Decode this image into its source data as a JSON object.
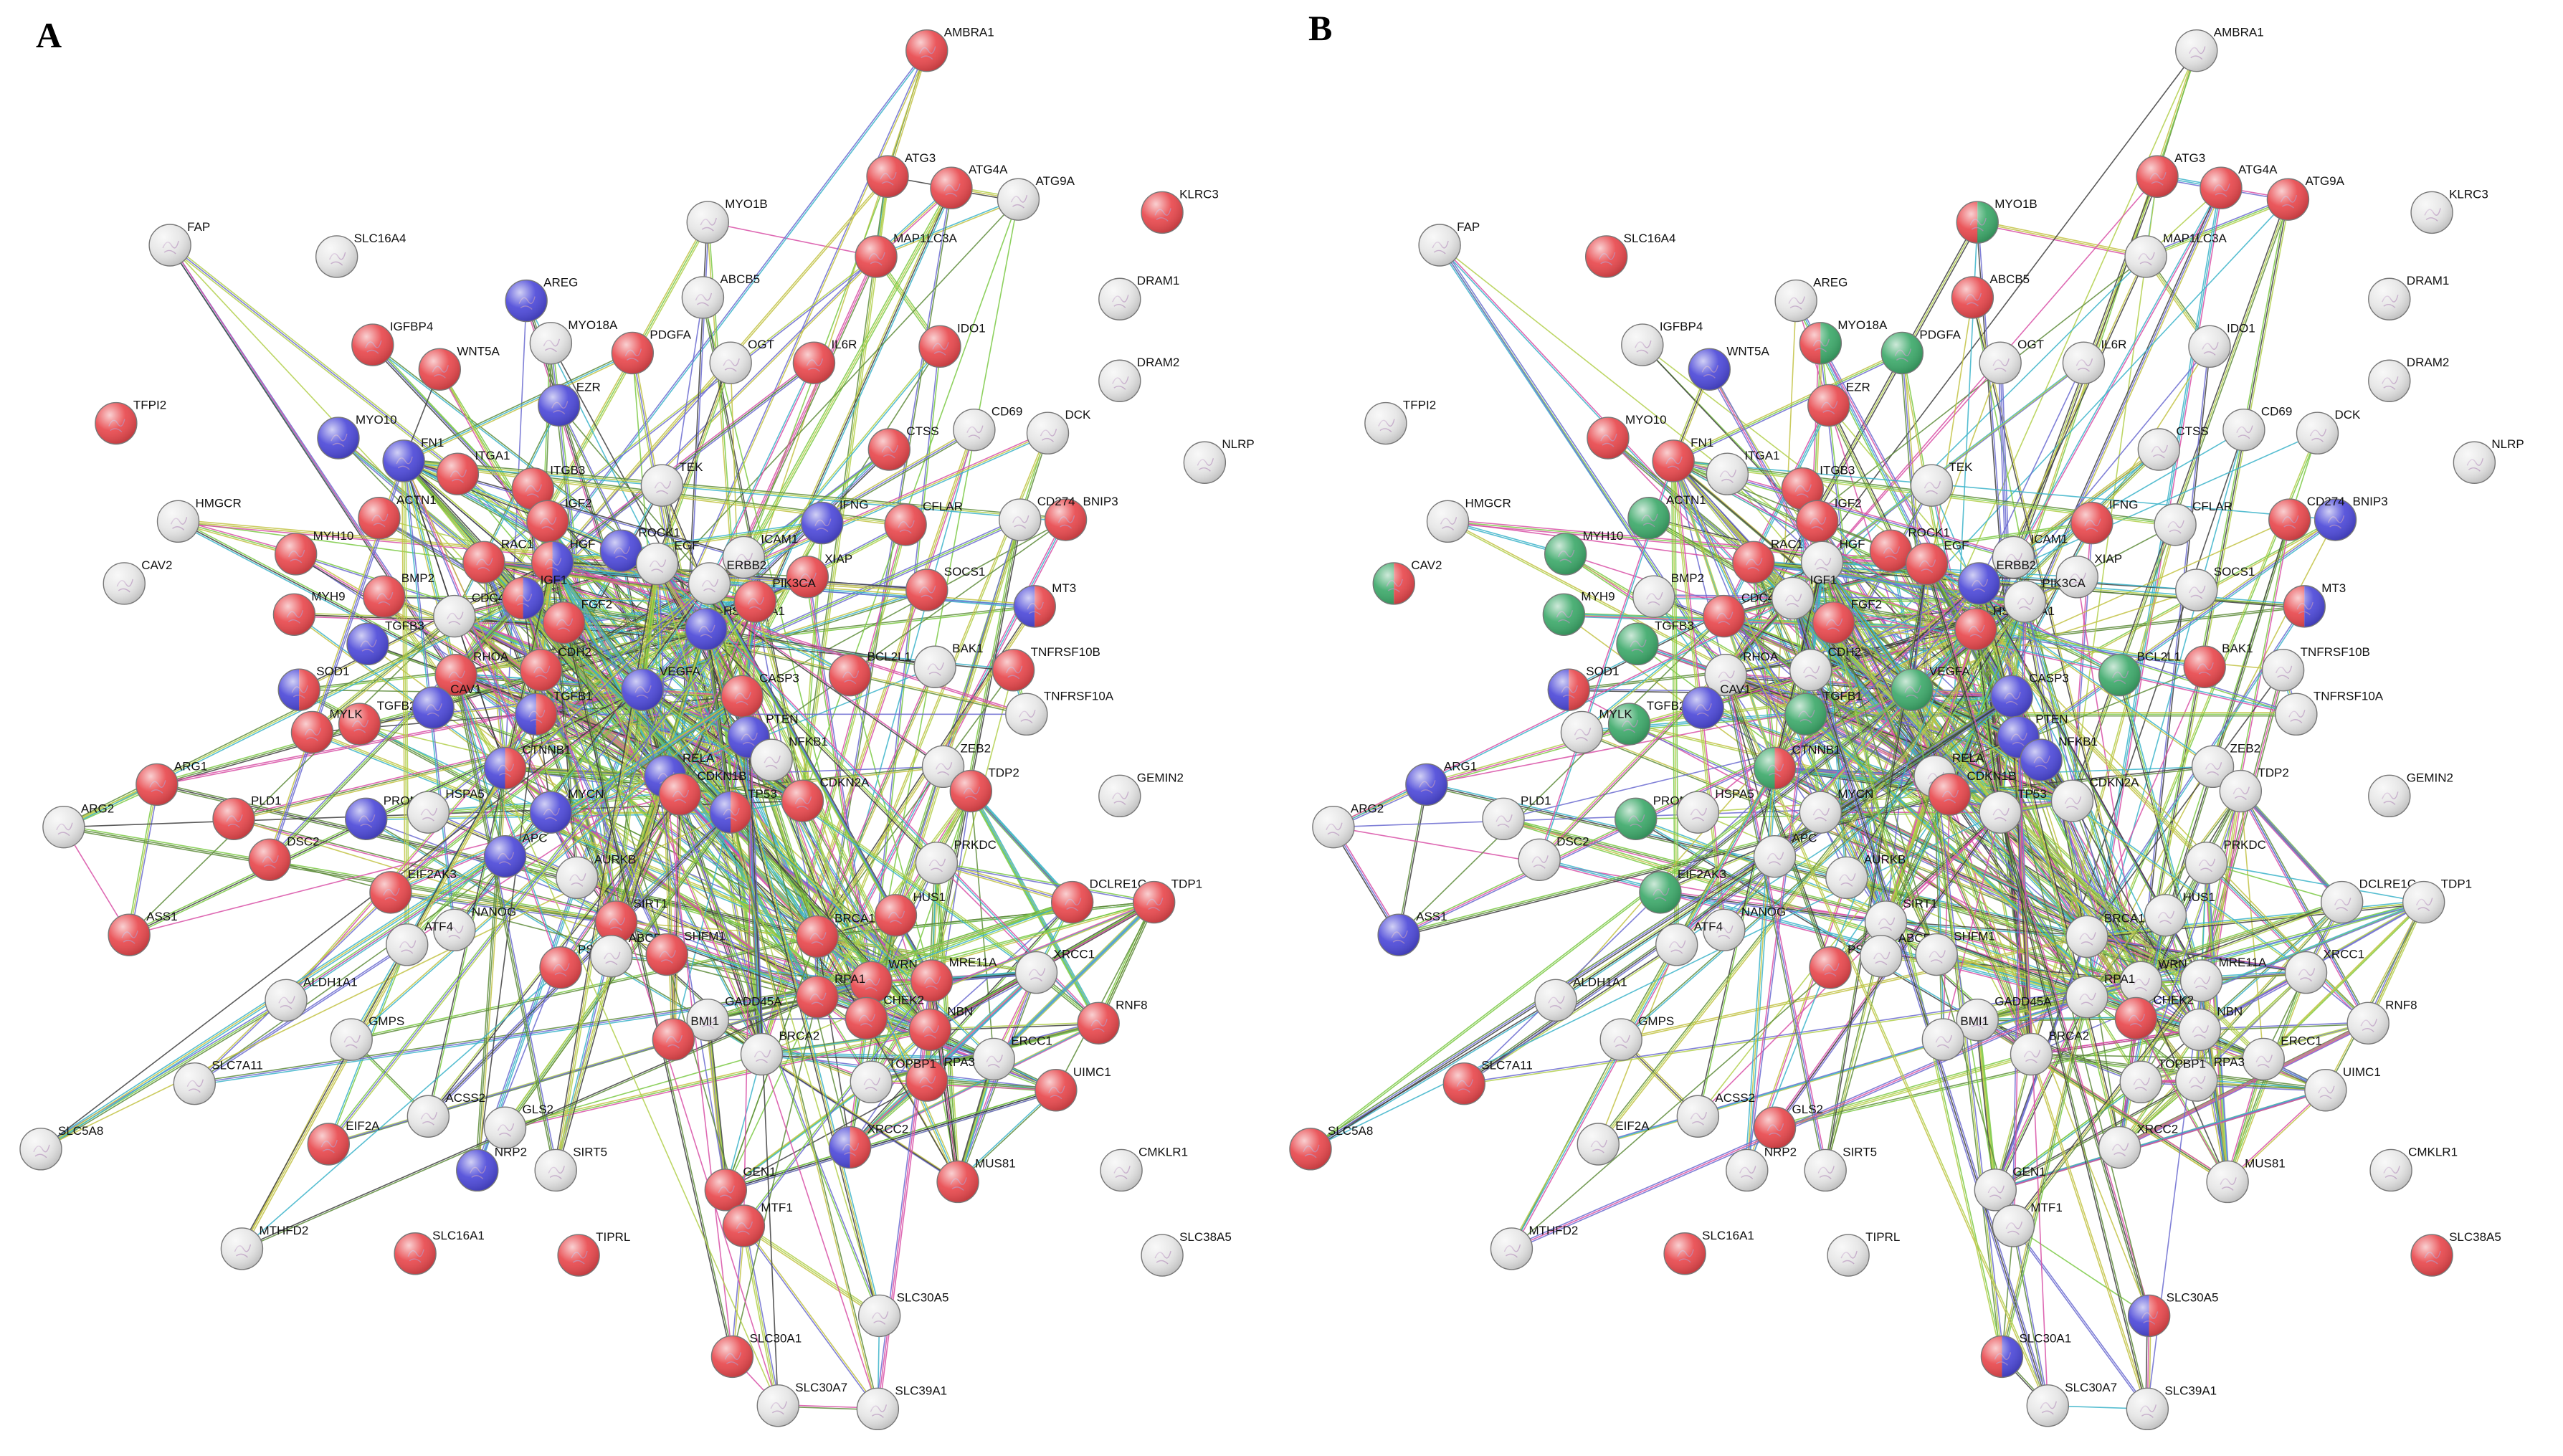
{
  "panels": [
    {
      "letter": "A"
    },
    {
      "letter": "B"
    }
  ],
  "colors": {
    "red": "#e8454a",
    "blue": "#4a46d8",
    "green": "#3aa868",
    "white": "#e6e6e6",
    "node_stroke": "#777777"
  },
  "nodes": [
    {
      "label": "AMBRA1",
      "a": [
        "red"
      ],
      "b": [
        "white"
      ]
    },
    {
      "label": "ATG3",
      "a": [
        "red"
      ],
      "b": [
        "red"
      ]
    },
    {
      "label": "ATG4A",
      "a": [
        "red"
      ],
      "b": [
        "red"
      ]
    },
    {
      "label": "ATG9A",
      "a": [
        "white"
      ],
      "b": [
        "red"
      ]
    },
    {
      "label": "KLRC3",
      "a": [
        "red"
      ],
      "b": [
        "white"
      ]
    },
    {
      "label": "MAP1LC3A",
      "a": [
        "red"
      ],
      "b": [
        "white"
      ]
    },
    {
      "label": "FAP",
      "a": [
        "white"
      ],
      "b": [
        "white"
      ]
    },
    {
      "label": "SLC16A4",
      "a": [
        "white"
      ],
      "b": [
        "red"
      ]
    },
    {
      "label": "MYO1B",
      "a": [
        "white"
      ],
      "b": [
        "red",
        "green"
      ]
    },
    {
      "label": "AREG",
      "a": [
        "blue"
      ],
      "b": [
        "white"
      ]
    },
    {
      "label": "ABCB5",
      "a": [
        "white"
      ],
      "b": [
        "red"
      ]
    },
    {
      "label": "DRAM1",
      "a": [
        "white"
      ],
      "b": [
        "white"
      ]
    },
    {
      "label": "IGFBP4",
      "a": [
        "red"
      ],
      "b": [
        "white"
      ]
    },
    {
      "label": "MYO18A",
      "a": [
        "white"
      ],
      "b": [
        "red",
        "green"
      ]
    },
    {
      "label": "PDGFA",
      "a": [
        "red"
      ],
      "b": [
        "green"
      ]
    },
    {
      "label": "OGT",
      "a": [
        "white"
      ],
      "b": [
        "white"
      ]
    },
    {
      "label": "IL6R",
      "a": [
        "red"
      ],
      "b": [
        "white"
      ]
    },
    {
      "label": "IDO1",
      "a": [
        "red"
      ],
      "b": [
        "white"
      ]
    },
    {
      "label": "DRAM2",
      "a": [
        "white"
      ],
      "b": [
        "white"
      ]
    },
    {
      "label": "WNT5A",
      "a": [
        "red"
      ],
      "b": [
        "blue"
      ]
    },
    {
      "label": "EZR",
      "a": [
        "blue"
      ],
      "b": [
        "red"
      ]
    },
    {
      "label": "TFPI2",
      "a": [
        "red"
      ],
      "b": [
        "white"
      ]
    },
    {
      "label": "MYO10",
      "a": [
        "blue"
      ],
      "b": [
        "red"
      ]
    },
    {
      "label": "FN1",
      "a": [
        "blue"
      ],
      "b": [
        "red"
      ]
    },
    {
      "label": "ITGA1",
      "a": [
        "red"
      ],
      "b": [
        "white"
      ]
    },
    {
      "label": "ITGB3",
      "a": [
        "red"
      ],
      "b": [
        "red"
      ]
    },
    {
      "label": "CTSS",
      "a": [
        "red"
      ],
      "b": [
        "white"
      ]
    },
    {
      "label": "CD69",
      "a": [
        "white"
      ],
      "b": [
        "white"
      ]
    },
    {
      "label": "DCK",
      "a": [
        "white"
      ],
      "b": [
        "white"
      ]
    },
    {
      "label": "NLRP",
      "a": [
        "white"
      ],
      "b": [
        "white"
      ]
    },
    {
      "label": "HMGCR",
      "a": [
        "white"
      ],
      "b": [
        "white"
      ]
    },
    {
      "label": "ACTN1",
      "a": [
        "red"
      ],
      "b": [
        "green"
      ]
    },
    {
      "label": "IGF2",
      "a": [
        "red"
      ],
      "b": [
        "red"
      ]
    },
    {
      "label": "TEK",
      "a": [
        "white"
      ],
      "b": [
        "white"
      ]
    },
    {
      "label": "IFNG",
      "a": [
        "blue"
      ],
      "b": [
        "red"
      ]
    },
    {
      "label": "CFLAR",
      "a": [
        "red"
      ],
      "b": [
        "white"
      ]
    },
    {
      "label": "BNIP3",
      "a": [
        "red"
      ],
      "b": [
        "blue"
      ]
    },
    {
      "label": "CD274",
      "a": [
        "white"
      ],
      "b": [
        "red"
      ]
    },
    {
      "label": "MYH10",
      "a": [
        "red"
      ],
      "b": [
        "green"
      ]
    },
    {
      "label": "RAC1",
      "a": [
        "red"
      ],
      "b": [
        "red"
      ]
    },
    {
      "label": "HGF",
      "a": [
        "red",
        "blue"
      ],
      "b": [
        "white"
      ]
    },
    {
      "label": "ROCK1",
      "a": [
        "blue"
      ],
      "b": [
        "red"
      ]
    },
    {
      "label": "EGF",
      "a": [
        "white"
      ],
      "b": [
        "red"
      ]
    },
    {
      "label": "ICAM1",
      "a": [
        "white"
      ],
      "b": [
        "white"
      ]
    },
    {
      "label": "XIAP",
      "a": [
        "red"
      ],
      "b": [
        "white"
      ]
    },
    {
      "label": "SOCS1",
      "a": [
        "red"
      ],
      "b": [
        "white"
      ]
    },
    {
      "label": "CAV2",
      "a": [
        "white"
      ],
      "b": [
        "green",
        "red"
      ]
    },
    {
      "label": "MYH9",
      "a": [
        "red"
      ],
      "b": [
        "green"
      ]
    },
    {
      "label": "BMP2",
      "a": [
        "red"
      ],
      "b": [
        "white"
      ]
    },
    {
      "label": "CDC42",
      "a": [
        "white"
      ],
      "b": [
        "red"
      ]
    },
    {
      "label": "IGF1",
      "a": [
        "red",
        "blue"
      ],
      "b": [
        "white"
      ]
    },
    {
      "label": "ERBB2",
      "a": [
        "white"
      ],
      "b": [
        "blue"
      ]
    },
    {
      "label": "MT3",
      "a": [
        "blue",
        "red"
      ],
      "b": [
        "red",
        "blue"
      ]
    },
    {
      "label": "TGFB3",
      "a": [
        "blue"
      ],
      "b": [
        "green"
      ]
    },
    {
      "label": "FGF2",
      "a": [
        "red"
      ],
      "b": [
        "red"
      ]
    },
    {
      "label": "HSP90AA1",
      "a": [
        "blue"
      ],
      "b": [
        "red"
      ]
    },
    {
      "label": "PIK3CA",
      "a": [
        "red"
      ],
      "b": [
        "white"
      ]
    },
    {
      "label": "TNFRSF10B",
      "a": [
        "red"
      ],
      "b": [
        "white"
      ]
    },
    {
      "label": "SOD1",
      "a": [
        "blue",
        "red"
      ],
      "b": [
        "blue",
        "red"
      ]
    },
    {
      "label": "RHOA",
      "a": [
        "red"
      ],
      "b": [
        "white"
      ]
    },
    {
      "label": "CDH2",
      "a": [
        "red"
      ],
      "b": [
        "white"
      ]
    },
    {
      "label": "BCL2L1",
      "a": [
        "red"
      ],
      "b": [
        "green"
      ]
    },
    {
      "label": "BAK1",
      "a": [
        "white"
      ],
      "b": [
        "red"
      ]
    },
    {
      "label": "TGFB2",
      "a": [
        "red"
      ],
      "b": [
        "green"
      ]
    },
    {
      "label": "CAV1",
      "a": [
        "blue"
      ],
      "b": [
        "blue"
      ]
    },
    {
      "label": "VEGFA",
      "a": [
        "blue"
      ],
      "b": [
        "green"
      ]
    },
    {
      "label": "CASP3",
      "a": [
        "red"
      ],
      "b": [
        "blue"
      ]
    },
    {
      "label": "TNFRSF10A",
      "a": [
        "white"
      ],
      "b": [
        "white"
      ]
    },
    {
      "label": "MYLK",
      "a": [
        "red"
      ],
      "b": [
        "white"
      ]
    },
    {
      "label": "TGFB1",
      "a": [
        "blue",
        "red"
      ],
      "b": [
        "green"
      ]
    },
    {
      "label": "PTEN",
      "a": [
        "blue"
      ],
      "b": [
        "blue"
      ]
    },
    {
      "label": "ARG1",
      "a": [
        "red"
      ],
      "b": [
        "blue"
      ]
    },
    {
      "label": "CTNNB1",
      "a": [
        "blue",
        "red"
      ],
      "b": [
        "green",
        "red"
      ]
    },
    {
      "label": "RELA",
      "a": [
        "blue"
      ],
      "b": [
        "white"
      ]
    },
    {
      "label": "NFKB1",
      "a": [
        "white"
      ],
      "b": [
        "blue"
      ]
    },
    {
      "label": "ZEB2",
      "a": [
        "white"
      ],
      "b": [
        "white"
      ]
    },
    {
      "label": "TDP2",
      "a": [
        "red"
      ],
      "b": [
        "white"
      ]
    },
    {
      "label": "GEMIN2",
      "a": [
        "white"
      ],
      "b": [
        "white"
      ]
    },
    {
      "label": "ARG2",
      "a": [
        "white"
      ],
      "b": [
        "white"
      ]
    },
    {
      "label": "PLD1",
      "a": [
        "red"
      ],
      "b": [
        "white"
      ]
    },
    {
      "label": "PROM1",
      "a": [
        "blue"
      ],
      "b": [
        "green"
      ]
    },
    {
      "label": "HSPA5",
      "a": [
        "white"
      ],
      "b": [
        "white"
      ]
    },
    {
      "label": "MYCN",
      "a": [
        "blue"
      ],
      "b": [
        "white"
      ]
    },
    {
      "label": "CDKN1B",
      "a": [
        "red"
      ],
      "b": [
        "red"
      ]
    },
    {
      "label": "CDKN2A",
      "a": [
        "red"
      ],
      "b": [
        "white"
      ]
    },
    {
      "label": "TP53",
      "a": [
        "blue",
        "red"
      ],
      "b": [
        "white"
      ]
    },
    {
      "label": "DSC2",
      "a": [
        "red"
      ],
      "b": [
        "white"
      ]
    },
    {
      "label": "APC",
      "a": [
        "blue"
      ],
      "b": [
        "white"
      ]
    },
    {
      "label": "AURKB",
      "a": [
        "white"
      ],
      "b": [
        "white"
      ]
    },
    {
      "label": "PRKDC",
      "a": [
        "white"
      ],
      "b": [
        "white"
      ]
    },
    {
      "label": "EIF2AK3",
      "a": [
        "red"
      ],
      "b": [
        "green"
      ]
    },
    {
      "label": "NANOG",
      "a": [
        "white"
      ],
      "b": [
        "white"
      ]
    },
    {
      "label": "HUS1",
      "a": [
        "red"
      ],
      "b": [
        "white"
      ]
    },
    {
      "label": "DCLRE1C",
      "a": [
        "red"
      ],
      "b": [
        "white"
      ]
    },
    {
      "label": "TDP1",
      "a": [
        "red"
      ],
      "b": [
        "white"
      ]
    },
    {
      "label": "SIRT1",
      "a": [
        "red"
      ],
      "b": [
        "white"
      ]
    },
    {
      "label": "BRCA1",
      "a": [
        "red"
      ],
      "b": [
        "white"
      ]
    },
    {
      "label": "ASS1",
      "a": [
        "red"
      ],
      "b": [
        "blue"
      ]
    },
    {
      "label": "ATF4",
      "a": [
        "white"
      ],
      "b": [
        "white"
      ]
    },
    {
      "label": "PSMD14",
      "a": [
        "red"
      ],
      "b": [
        "red"
      ]
    },
    {
      "label": "ABCB1",
      "a": [
        "white"
      ],
      "b": [
        "white"
      ]
    },
    {
      "label": "SHFM1",
      "a": [
        "red"
      ],
      "b": [
        "white"
      ]
    },
    {
      "label": "WRN",
      "a": [
        "red"
      ],
      "b": [
        "white"
      ]
    },
    {
      "label": "MRE11A",
      "a": [
        "red"
      ],
      "b": [
        "white"
      ]
    },
    {
      "label": "XRCC1",
      "a": [
        "white"
      ],
      "b": [
        "white"
      ]
    },
    {
      "label": "ALDH1A1",
      "a": [
        "white"
      ],
      "b": [
        "white"
      ]
    },
    {
      "label": "GADD45A",
      "a": [
        "white"
      ],
      "b": [
        "white"
      ]
    },
    {
      "label": "RPA1",
      "a": [
        "red"
      ],
      "b": [
        "white"
      ]
    },
    {
      "label": "CHEK2",
      "a": [
        "red"
      ],
      "b": [
        "red"
      ]
    },
    {
      "label": "NBN",
      "a": [
        "red"
      ],
      "b": [
        "white"
      ]
    },
    {
      "label": "RNF8",
      "a": [
        "red"
      ],
      "b": [
        "white"
      ]
    },
    {
      "label": "GMPS",
      "a": [
        "white"
      ],
      "b": [
        "white"
      ]
    },
    {
      "label": "BMI1",
      "a": [
        "red"
      ],
      "b": [
        "white"
      ]
    },
    {
      "label": "BRCA2",
      "a": [
        "white"
      ],
      "b": [
        "white"
      ]
    },
    {
      "label": "ERCC1",
      "a": [
        "white"
      ],
      "b": [
        "white"
      ]
    },
    {
      "label": "SLC7A11",
      "a": [
        "white"
      ],
      "b": [
        "red"
      ]
    },
    {
      "label": "ACSS2",
      "a": [
        "white"
      ],
      "b": [
        "white"
      ]
    },
    {
      "label": "RPA3",
      "a": [
        "red"
      ],
      "b": [
        "white"
      ]
    },
    {
      "label": "UIMC1",
      "a": [
        "red"
      ],
      "b": [
        "white"
      ]
    },
    {
      "label": "TOPBP1",
      "a": [
        "white"
      ],
      "b": [
        "white"
      ]
    },
    {
      "label": "EIF2A",
      "a": [
        "red"
      ],
      "b": [
        "white"
      ]
    },
    {
      "label": "GLS2",
      "a": [
        "white"
      ],
      "b": [
        "red"
      ]
    },
    {
      "label": "SLC5A8",
      "a": [
        "white"
      ],
      "b": [
        "red"
      ]
    },
    {
      "label": "XRCC2",
      "a": [
        "blue",
        "red"
      ],
      "b": [
        "white"
      ]
    },
    {
      "label": "NRP2",
      "a": [
        "blue"
      ],
      "b": [
        "white"
      ]
    },
    {
      "label": "SIRT5",
      "a": [
        "white"
      ],
      "b": [
        "white"
      ]
    },
    {
      "label": "CMKLR1",
      "a": [
        "white"
      ],
      "b": [
        "white"
      ]
    },
    {
      "label": "MUS81",
      "a": [
        "red"
      ],
      "b": [
        "white"
      ]
    },
    {
      "label": "GEN1",
      "a": [
        "red"
      ],
      "b": [
        "white"
      ]
    },
    {
      "label": "MTHFD2",
      "a": [
        "white"
      ],
      "b": [
        "white"
      ]
    },
    {
      "label": "MTF1",
      "a": [
        "red"
      ],
      "b": [
        "white"
      ]
    },
    {
      "label": "SLC16A1",
      "a": [
        "red"
      ],
      "b": [
        "red"
      ]
    },
    {
      "label": "TIPRL",
      "a": [
        "red"
      ],
      "b": [
        "white"
      ]
    },
    {
      "label": "SLC38A5",
      "a": [
        "white"
      ],
      "b": [
        "red"
      ]
    },
    {
      "label": "SLC30A5",
      "a": [
        "white"
      ],
      "b": [
        "blue",
        "red"
      ]
    },
    {
      "label": "SLC30A1",
      "a": [
        "red"
      ],
      "b": [
        "red",
        "blue"
      ]
    },
    {
      "label": "SLC30A7",
      "a": [
        "white"
      ],
      "b": [
        "white"
      ]
    },
    {
      "label": "SLC39A1",
      "a": [
        "white"
      ],
      "b": [
        "white"
      ]
    }
  ]
}
